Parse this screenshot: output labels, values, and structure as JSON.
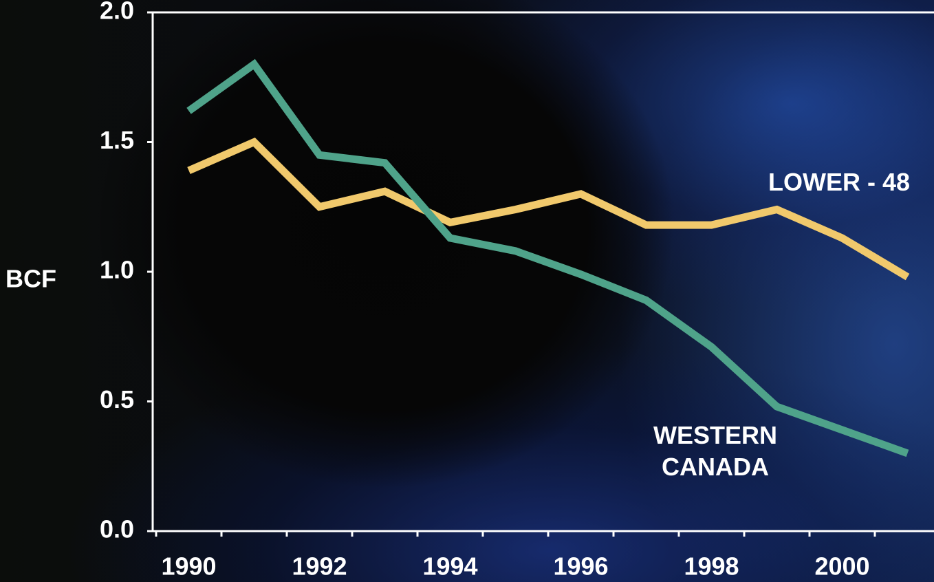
{
  "chart_data": {
    "type": "line",
    "y_label": "BCF",
    "categories": [
      "1990",
      null,
      "1992",
      null,
      "1994",
      null,
      "1996",
      null,
      "1998",
      null,
      "2000",
      null
    ],
    "series": [
      {
        "name": "LOWER - 48",
        "color": "#f1c96c",
        "values": [
          1.39,
          1.5,
          1.25,
          1.31,
          1.19,
          1.24,
          1.3,
          1.18,
          1.18,
          1.24,
          1.13,
          0.98
        ]
      },
      {
        "name": "WESTERN CANADA",
        "color": "#4fa38a",
        "values": [
          1.62,
          1.8,
          1.45,
          1.42,
          1.13,
          1.08,
          0.99,
          0.89,
          0.71,
          0.48,
          0.39,
          0.3
        ]
      }
    ],
    "ylim": [
      0,
      2
    ],
    "yticks": [
      {
        "value": 0,
        "label": "0.0"
      },
      0.5,
      {
        "value": 1,
        "label": "1.0"
      },
      1.5,
      {
        "value": 2,
        "label": "2.0"
      }
    ]
  }
}
